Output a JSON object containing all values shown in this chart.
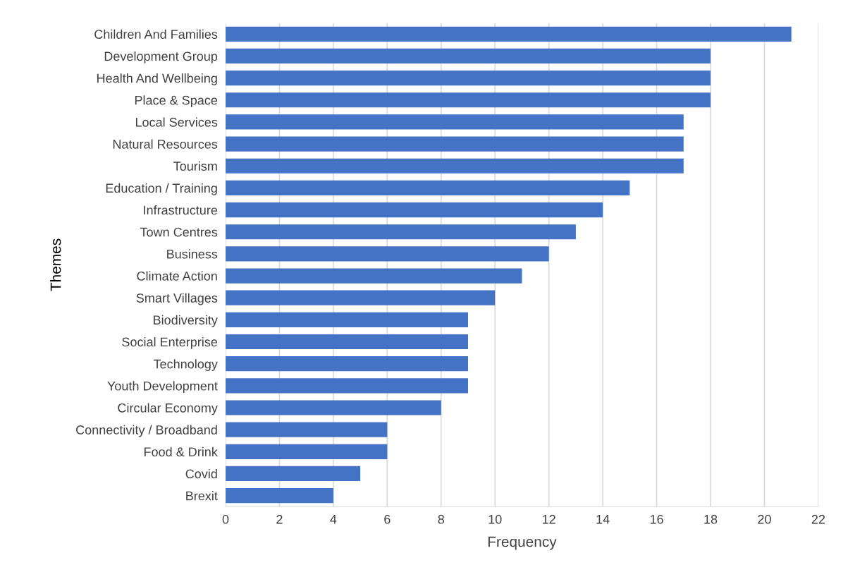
{
  "chart_data": {
    "type": "bar",
    "orientation": "horizontal",
    "xlabel": "Frequency",
    "ylabel": "Themes",
    "categories": [
      "Children And Families",
      "Development Group",
      "Health And Wellbeing",
      "Place & Space",
      "Local Services",
      "Natural Resources",
      "Tourism",
      "Education / Training",
      "Infrastructure",
      "Town Centres",
      "Business",
      "Climate Action",
      "Smart Villages",
      "Biodiversity",
      "Social Enterprise",
      "Technology",
      "Youth Development",
      "Circular Economy",
      "Connectivity / Broadband",
      "Food & Drink",
      "Covid",
      "Brexit"
    ],
    "values": [
      21,
      18,
      18,
      18,
      17,
      17,
      17,
      15,
      14,
      13,
      12,
      11,
      10,
      9,
      9,
      9,
      9,
      8,
      6,
      6,
      5,
      4
    ],
    "color": "#4472c4",
    "xlim": [
      0,
      22
    ],
    "xticks": [
      0,
      2,
      4,
      6,
      8,
      10,
      12,
      14,
      16,
      18,
      20,
      22
    ],
    "grid": "x",
    "legend": false
  }
}
